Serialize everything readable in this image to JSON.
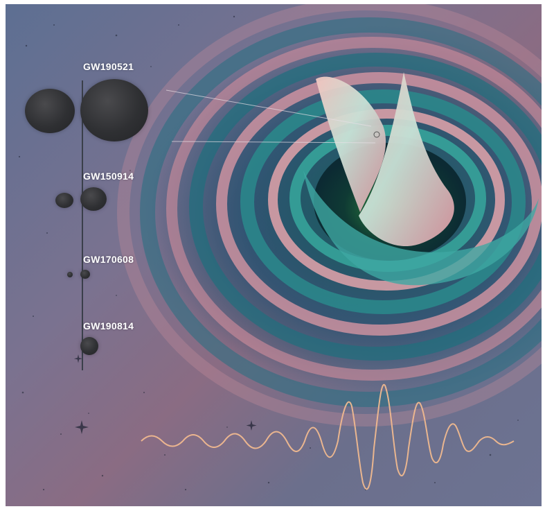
{
  "events": [
    {
      "name": "GW190521"
    },
    {
      "name": "GW150914"
    },
    {
      "name": "GW170608"
    },
    {
      "name": "GW190814"
    }
  ],
  "icons": [
    "black-hole-pair",
    "spacetime-warp",
    "gravitational-waveform"
  ],
  "colors": {
    "background": "#6d7392",
    "ripple_teal": "#2f8a8a",
    "ripple_pink": "#d68a9a",
    "black_hole": "#2f3033",
    "waveform": "#f0b58a",
    "label": "#ffffff"
  }
}
